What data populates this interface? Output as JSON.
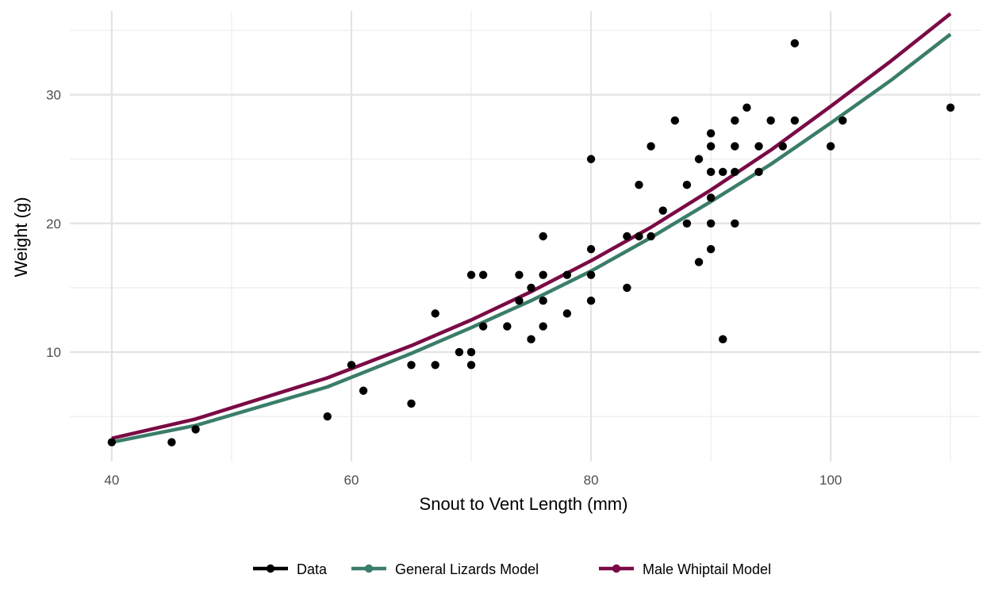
{
  "chart_data": {
    "type": "scatter",
    "title": "",
    "xlabel": "Snout to Vent Length (mm)",
    "ylabel": "Weight (g)",
    "xlim": [
      36.5,
      112.5
    ],
    "ylim": [
      1.5,
      36.5
    ],
    "x_ticks": [
      40,
      60,
      80,
      100
    ],
    "y_ticks": [
      10,
      20,
      30
    ],
    "x_minor_ticks": [
      50,
      70,
      90,
      110
    ],
    "y_minor_ticks": [
      5,
      15,
      25,
      35
    ],
    "grid": true,
    "legend_position": "bottom",
    "legend": [
      {
        "label": "Data",
        "color": "#000000"
      },
      {
        "label": "General Lizards Model",
        "color": "#3a7d6a"
      },
      {
        "label": "Male Whiptail Model",
        "color": "#7a0a45"
      }
    ],
    "points": [
      {
        "x": 40,
        "y": 3
      },
      {
        "x": 45,
        "y": 3
      },
      {
        "x": 47,
        "y": 4
      },
      {
        "x": 58,
        "y": 5
      },
      {
        "x": 60,
        "y": 9
      },
      {
        "x": 61,
        "y": 7
      },
      {
        "x": 65,
        "y": 6
      },
      {
        "x": 65,
        "y": 9
      },
      {
        "x": 67,
        "y": 9
      },
      {
        "x": 67,
        "y": 13
      },
      {
        "x": 69,
        "y": 10
      },
      {
        "x": 70,
        "y": 9
      },
      {
        "x": 70,
        "y": 10
      },
      {
        "x": 70,
        "y": 16
      },
      {
        "x": 71,
        "y": 12
      },
      {
        "x": 71,
        "y": 16
      },
      {
        "x": 73,
        "y": 12
      },
      {
        "x": 74,
        "y": 14
      },
      {
        "x": 74,
        "y": 16
      },
      {
        "x": 75,
        "y": 11
      },
      {
        "x": 75,
        "y": 15
      },
      {
        "x": 76,
        "y": 12
      },
      {
        "x": 76,
        "y": 14
      },
      {
        "x": 76,
        "y": 16
      },
      {
        "x": 76,
        "y": 19
      },
      {
        "x": 78,
        "y": 13
      },
      {
        "x": 78,
        "y": 16
      },
      {
        "x": 80,
        "y": 14
      },
      {
        "x": 80,
        "y": 16
      },
      {
        "x": 80,
        "y": 18
      },
      {
        "x": 80,
        "y": 25
      },
      {
        "x": 83,
        "y": 15
      },
      {
        "x": 83,
        "y": 19
      },
      {
        "x": 84,
        "y": 19
      },
      {
        "x": 84,
        "y": 23
      },
      {
        "x": 85,
        "y": 19
      },
      {
        "x": 85,
        "y": 26
      },
      {
        "x": 86,
        "y": 21
      },
      {
        "x": 87,
        "y": 28
      },
      {
        "x": 88,
        "y": 20
      },
      {
        "x": 88,
        "y": 23
      },
      {
        "x": 89,
        "y": 17
      },
      {
        "x": 89,
        "y": 25
      },
      {
        "x": 90,
        "y": 18
      },
      {
        "x": 90,
        "y": 20
      },
      {
        "x": 90,
        "y": 22
      },
      {
        "x": 90,
        "y": 24
      },
      {
        "x": 90,
        "y": 26
      },
      {
        "x": 90,
        "y": 27
      },
      {
        "x": 91,
        "y": 11
      },
      {
        "x": 91,
        "y": 24
      },
      {
        "x": 92,
        "y": 20
      },
      {
        "x": 92,
        "y": 24
      },
      {
        "x": 92,
        "y": 26
      },
      {
        "x": 92,
        "y": 28
      },
      {
        "x": 93,
        "y": 29
      },
      {
        "x": 94,
        "y": 24
      },
      {
        "x": 94,
        "y": 26
      },
      {
        "x": 95,
        "y": 28
      },
      {
        "x": 96,
        "y": 26
      },
      {
        "x": 97,
        "y": 28
      },
      {
        "x": 97,
        "y": 34
      },
      {
        "x": 100,
        "y": 26
      },
      {
        "x": 101,
        "y": 28
      },
      {
        "x": 110,
        "y": 29
      }
    ],
    "series": [
      {
        "name": "General Lizards Model",
        "color": "#3a7d6a",
        "x": [
          40,
          47,
          58,
          65,
          70,
          75,
          80,
          85,
          90,
          95,
          100,
          105,
          110
        ],
        "y": [
          3.0,
          4.3,
          7.3,
          9.9,
          11.9,
          14.0,
          16.3,
          18.9,
          21.7,
          24.6,
          27.8,
          31.1,
          34.7
        ]
      },
      {
        "name": "Male Whiptail Model",
        "color": "#7a0a45",
        "x": [
          40,
          47,
          58,
          65,
          70,
          75,
          80,
          85,
          90,
          95,
          100,
          105,
          110
        ],
        "y": [
          3.3,
          4.8,
          8.0,
          10.5,
          12.5,
          14.7,
          17.1,
          19.7,
          22.6,
          25.7,
          29.1,
          32.6,
          36.3
        ]
      }
    ]
  }
}
